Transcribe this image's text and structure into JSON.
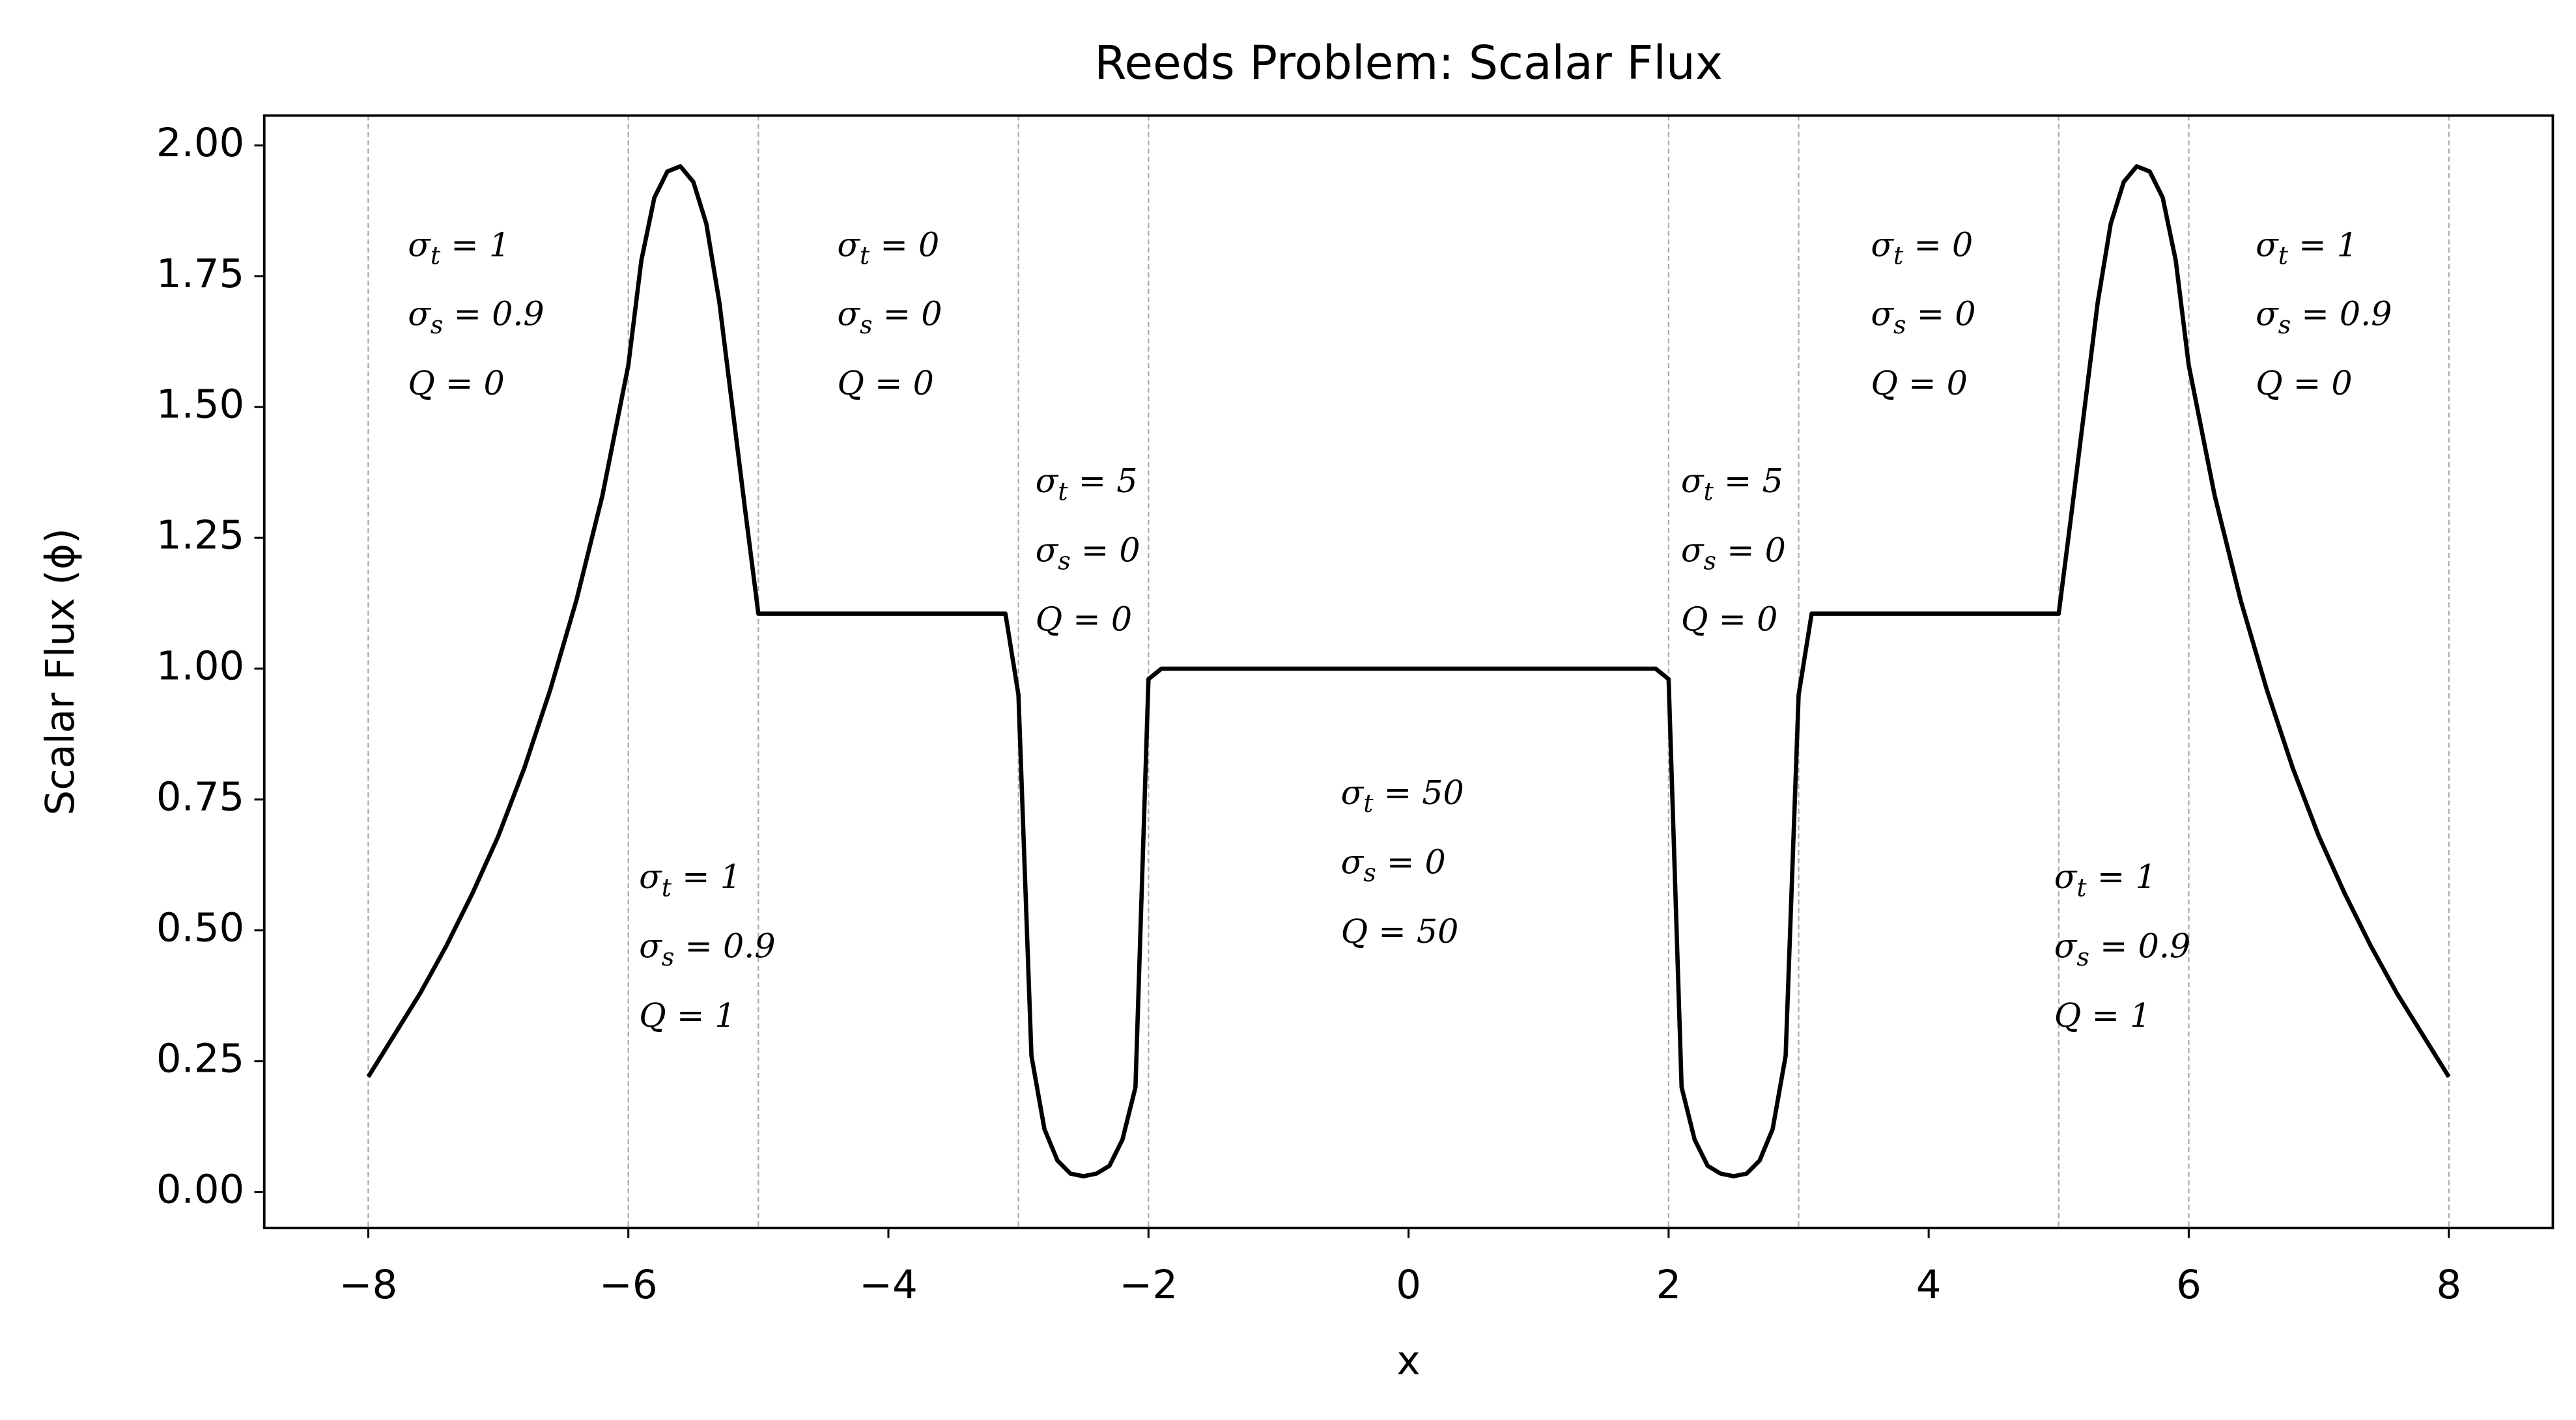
{
  "chart_data": {
    "type": "line",
    "title": "Reeds Problem: Scalar Flux",
    "x_label": "x",
    "y_label": "Scalar Flux (ϕ)",
    "x": [
      -8,
      -7.8,
      -7.6,
      -7.4,
      -7.2,
      -7.0,
      -6.8,
      -6.6,
      -6.4,
      -6.2,
      -6.0,
      -5.9,
      -5.8,
      -5.7,
      -5.6,
      -5.5,
      -5.4,
      -5.3,
      -5.2,
      -5.1,
      -5.0,
      -3.1,
      -3.0,
      -2.9,
      -2.8,
      -2.7,
      -2.6,
      -2.5,
      -2.4,
      -2.3,
      -2.2,
      -2.1,
      -2.0,
      -1.9,
      1.9,
      2.0,
      2.1,
      2.2,
      2.3,
      2.4,
      2.5,
      2.6,
      2.7,
      2.8,
      2.9,
      3.0,
      3.1,
      5.0,
      5.1,
      5.2,
      5.3,
      5.4,
      5.5,
      5.6,
      5.7,
      5.8,
      5.9,
      6.0,
      6.2,
      6.4,
      6.6,
      6.8,
      7.0,
      7.2,
      7.4,
      7.6,
      7.8,
      8
    ],
    "series": [
      {
        "color": "#000000",
        "values": [
          0.22,
          0.3,
          0.38,
          0.47,
          0.57,
          0.68,
          0.81,
          0.96,
          1.13,
          1.33,
          1.58,
          1.78,
          1.9,
          1.95,
          1.96,
          1.93,
          1.85,
          1.7,
          1.5,
          1.3,
          1.105,
          1.105,
          0.95,
          0.26,
          0.12,
          0.06,
          0.035,
          0.03,
          0.035,
          0.05,
          0.1,
          0.2,
          0.98,
          1.0,
          1.0,
          0.98,
          0.2,
          0.1,
          0.05,
          0.035,
          0.03,
          0.035,
          0.06,
          0.12,
          0.26,
          0.95,
          1.105,
          1.105,
          1.3,
          1.5,
          1.7,
          1.85,
          1.93,
          1.96,
          1.95,
          1.9,
          1.78,
          1.58,
          1.33,
          1.13,
          0.96,
          0.81,
          0.68,
          0.57,
          0.47,
          0.38,
          0.3,
          0.22
        ]
      }
    ],
    "xlim": [
      -8.8,
      8.8
    ],
    "ylim": [
      -0.069,
      2.057
    ],
    "xticks": [
      {
        "value": -8,
        "label": "−8"
      },
      {
        "value": -6,
        "label": "−6"
      },
      {
        "value": -4,
        "label": "−4"
      },
      {
        "value": -2,
        "label": "−2"
      },
      0,
      2,
      4,
      6,
      8
    ],
    "yticks": [
      {
        "value": 0,
        "label": "0.00"
      },
      {
        "value": 0.25,
        "label": "0.25"
      },
      {
        "value": 0.5,
        "label": "0.50"
      },
      {
        "value": 0.75,
        "label": "0.75"
      },
      {
        "value": 1,
        "label": "1.00"
      },
      {
        "value": 1.25,
        "label": "1.25"
      },
      {
        "value": 1.5,
        "label": "1.50"
      },
      {
        "value": 1.75,
        "label": "1.75"
      },
      {
        "value": 2,
        "label": "2.00"
      }
    ],
    "vlines": [
      -8,
      -6,
      -5,
      -3,
      -2,
      2,
      3,
      5,
      6,
      8
    ],
    "annotations": [
      [
        "σt = 1",
        "σs = 0.9",
        "Q = 0"
      ],
      [
        "σt = 1",
        "σs = 0.9",
        "Q = 1"
      ],
      [
        "σt = 0",
        "σs = 0",
        "Q = 0"
      ],
      [
        "σt = 5",
        "σs = 0",
        "Q = 0"
      ],
      [
        "σt = 50",
        "σs = 0",
        "Q = 50"
      ],
      [
        "σt = 5",
        "σs = 0",
        "Q = 0"
      ],
      [
        "σt = 0",
        "σs = 0",
        "Q = 0"
      ],
      [
        "σt = 1",
        "σs = 0.9",
        "Q = 1"
      ],
      [
        "σt = 1",
        "σs = 0.9",
        "Q = 0"
      ]
    ]
  }
}
